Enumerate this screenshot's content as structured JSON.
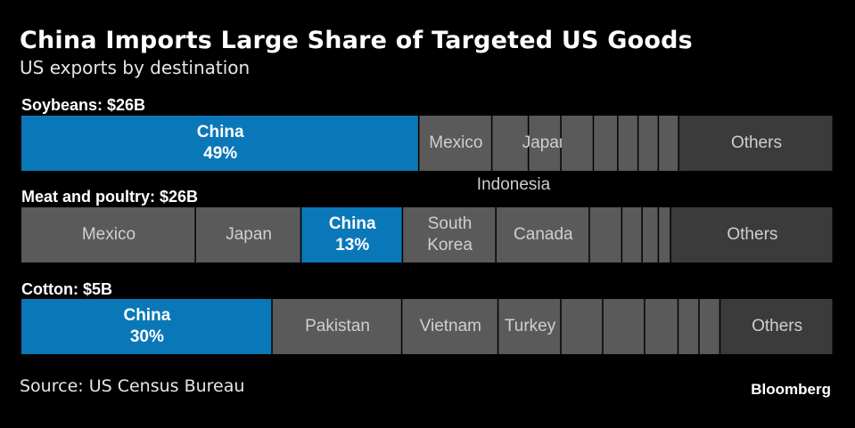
{
  "header": {
    "title": "China Imports Large Share of Targeted US Goods",
    "subtitle": "US exports by destination"
  },
  "footer": {
    "source": "Source: US Census Bureau",
    "brand": "Bloomberg"
  },
  "colors": {
    "china": "#0a78b8",
    "segment": "#5a5a5a",
    "others": "#3b3b3b",
    "divider": "#2a2a2a"
  },
  "chart_data": {
    "type": "bar",
    "stacked": true,
    "orientation": "horizontal",
    "total": 100,
    "rows": [
      {
        "label": "Soybeans: $26B",
        "segments": [
          {
            "name": "China",
            "value": 49,
            "value_label": "49%",
            "highlight": true
          },
          {
            "name": "Mexico",
            "value": 9
          },
          {
            "name": "",
            "value": 4.5
          },
          {
            "name": "Japan",
            "value": 4
          },
          {
            "name": "",
            "value": 4
          },
          {
            "name": "",
            "value": 3
          },
          {
            "name": "",
            "value": 2.5
          },
          {
            "name": "",
            "value": 2.5
          },
          {
            "name": "",
            "value": 2.5
          },
          {
            "name": "Others",
            "value": 19,
            "others": true
          }
        ],
        "annotation": "Indonesia"
      },
      {
        "label": "Meat and poultry: $26B",
        "segments": [
          {
            "name": "Mexico",
            "value": 21.5
          },
          {
            "name": "Japan",
            "value": 13
          },
          {
            "name": "China",
            "value": 12.5,
            "value_label": "13%",
            "highlight": true
          },
          {
            "name": "South\nKorea",
            "value": 11.5
          },
          {
            "name": "Canada",
            "value": 11.5
          },
          {
            "name": "",
            "value": 4
          },
          {
            "name": "",
            "value": 2.5
          },
          {
            "name": "",
            "value": 2
          },
          {
            "name": "",
            "value": 1.5
          },
          {
            "name": "Others",
            "value": 20,
            "others": true
          }
        ]
      },
      {
        "label": "Cotton: $5B",
        "segments": [
          {
            "name": "China",
            "value": 30,
            "value_label": "30%",
            "highlight": true
          },
          {
            "name": "Pakistan",
            "value": 15.5
          },
          {
            "name": "Vietnam",
            "value": 11.5
          },
          {
            "name": "Turkey",
            "value": 7.5
          },
          {
            "name": "",
            "value": 5
          },
          {
            "name": "",
            "value": 5
          },
          {
            "name": "",
            "value": 4
          },
          {
            "name": "",
            "value": 2.5
          },
          {
            "name": "",
            "value": 2.5
          },
          {
            "name": "Others",
            "value": 13.5,
            "others": true
          }
        ]
      }
    ]
  }
}
